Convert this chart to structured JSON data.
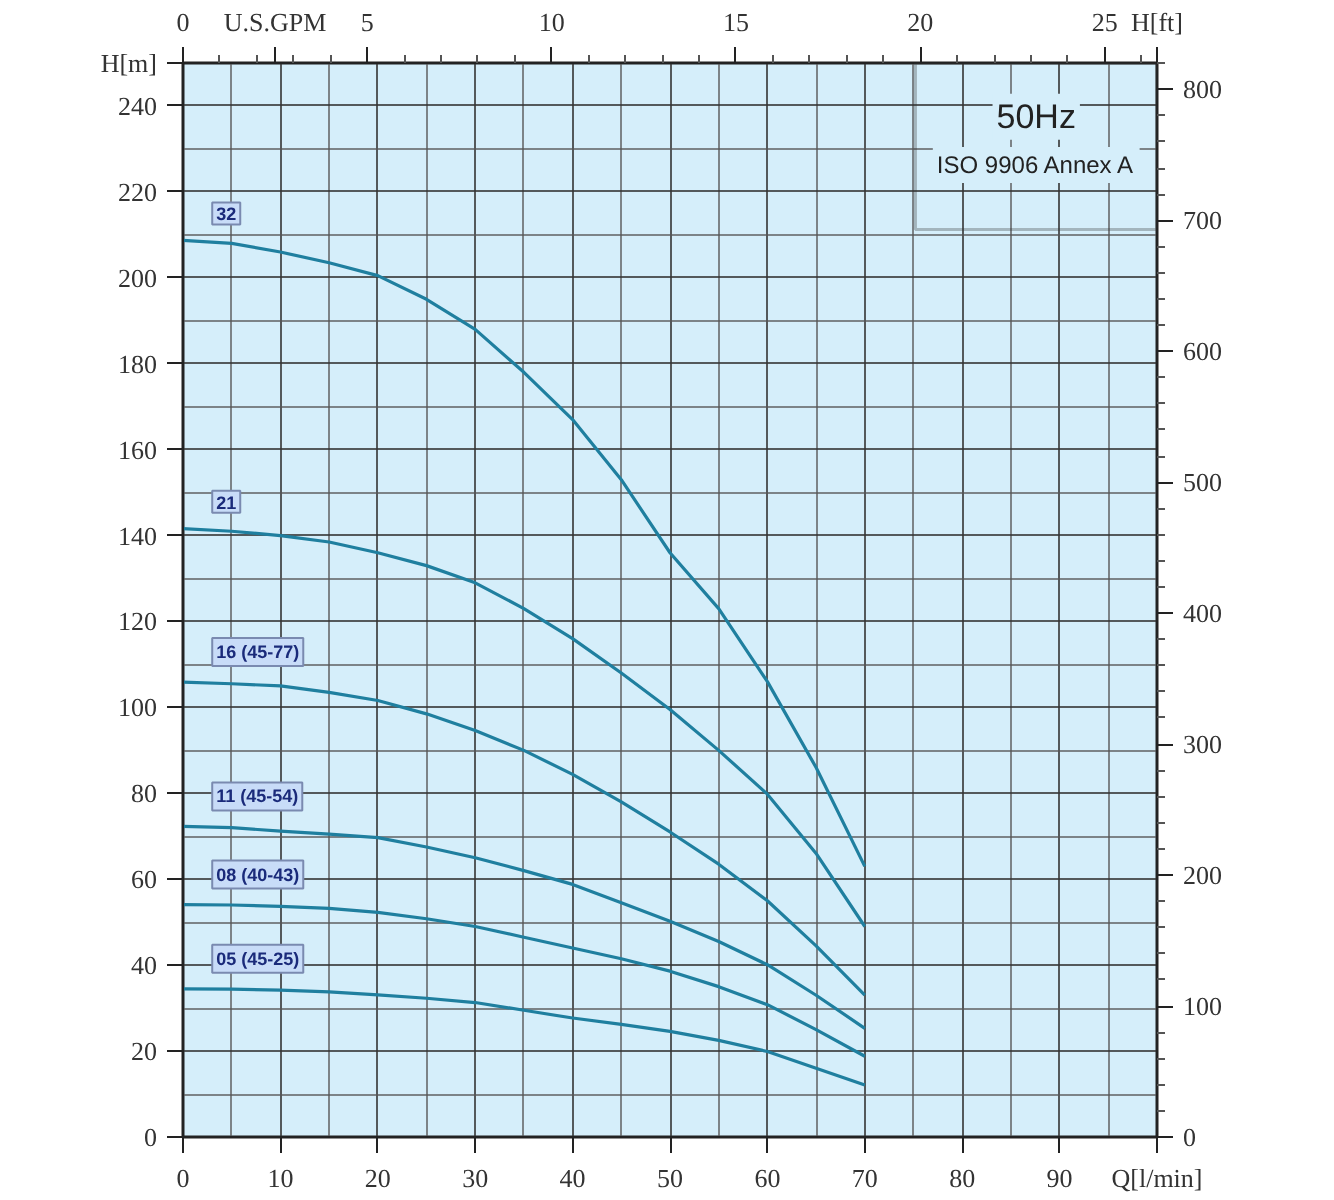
{
  "chart_data": {
    "type": "line",
    "xlabel": "Q[l/min]",
    "ylabel": "H[m]",
    "y2label": "H[ft]",
    "x2label": "U.S.GPM",
    "annotations": [
      "50Hz",
      "ISO 9906 Annex A"
    ],
    "x": [
      0,
      5,
      10,
      15,
      20,
      25,
      30,
      35,
      40,
      45,
      50,
      55,
      60,
      65,
      70
    ],
    "series": [
      {
        "name": "32",
        "color": "#1f7f9f",
        "values": [
          208.7,
          208,
          206,
          203.5,
          200.5,
          195,
          188,
          178,
          167,
          153,
          136,
          123,
          106,
          86,
          63
        ]
      },
      {
        "name": "21",
        "color": "#1f7f9f",
        "values": [
          141.6,
          141,
          140,
          138.5,
          136,
          133,
          129,
          123,
          116,
          108,
          99.5,
          90,
          79.8,
          66,
          49
        ]
      },
      {
        "name": "16 (45-77)",
        "color": "#1f7f9f",
        "values": [
          105.9,
          105.5,
          105,
          103.5,
          101.6,
          98.5,
          94.6,
          90,
          84.4,
          78,
          71,
          63.5,
          55,
          44.5,
          33
        ]
      },
      {
        "name": "11 (45-54)",
        "color": "#1f7f9f",
        "values": [
          72.3,
          72,
          71.2,
          70.5,
          69.7,
          67.5,
          65,
          62,
          58.8,
          54.5,
          50.2,
          45.5,
          40.1,
          33,
          25.3
        ]
      },
      {
        "name": "08 (40-43)",
        "color": "#1f7f9f",
        "values": [
          54.1,
          54,
          53.7,
          53.2,
          52.3,
          50.8,
          49,
          46.5,
          44,
          41.5,
          38.6,
          35,
          30.8,
          25,
          18.8
        ]
      },
      {
        "name": "05 (45-25)",
        "color": "#1f7f9f",
        "values": [
          34.5,
          34.4,
          34.2,
          33.8,
          33.1,
          32.3,
          31.3,
          29.5,
          27.7,
          26.2,
          24.6,
          22.5,
          19.9,
          16,
          12.1
        ]
      }
    ],
    "xlim": [
      0,
      100
    ],
    "xticks": [
      0,
      10,
      20,
      30,
      40,
      50,
      60,
      70,
      80,
      90
    ],
    "ylim": [
      0,
      250
    ],
    "yticks": [
      0,
      20,
      40,
      60,
      80,
      100,
      120,
      140,
      160,
      180,
      200,
      220,
      240
    ],
    "y2lim": [
      0,
      820.2
    ],
    "y2ticks": [
      0,
      100,
      200,
      300,
      400,
      500,
      600,
      700,
      800
    ],
    "x2lim": [
      0,
      26.42
    ],
    "x2ticks": [
      0,
      5,
      10,
      15,
      20,
      25
    ],
    "grid": true,
    "line_style": "solid",
    "marker": "none"
  }
}
